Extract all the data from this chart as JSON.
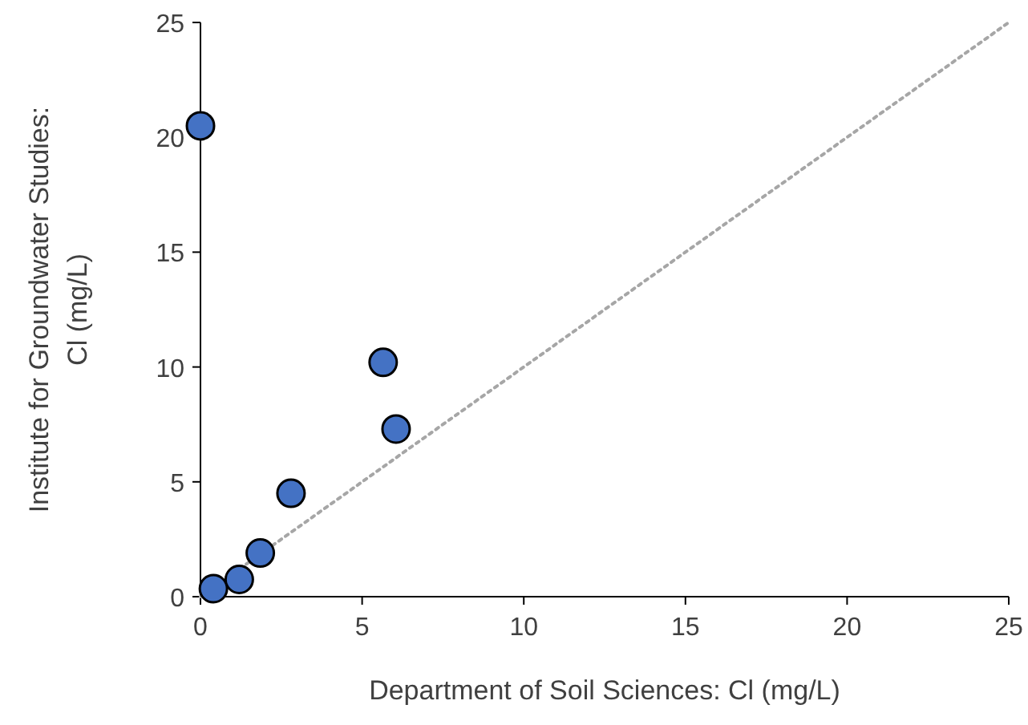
{
  "chart_data": {
    "type": "scatter",
    "xlabel": "Department of Soil Sciences: Cl (mg/L)",
    "ylabel": "Institute for Groundwater Studies:\nCl (mg/L)",
    "xlim": [
      0,
      25
    ],
    "ylim": [
      0,
      25
    ],
    "xticks": [
      0,
      5,
      10,
      15,
      20,
      25
    ],
    "yticks": [
      0,
      5,
      10,
      15,
      20,
      25
    ],
    "grid": false,
    "marker": "circle",
    "series": [
      {
        "type": "line",
        "color": "#a6a6a6",
        "line_style": "dotted",
        "marker": "none",
        "x": [
          0,
          25
        ],
        "values": [
          0,
          25
        ]
      },
      {
        "color": "#4472c4",
        "x": [
          0,
          0.4,
          1.2,
          1.85,
          2.8,
          5.65,
          6.05
        ],
        "values": [
          20.5,
          0.35,
          0.75,
          1.9,
          4.5,
          10.2,
          7.3
        ]
      }
    ]
  }
}
